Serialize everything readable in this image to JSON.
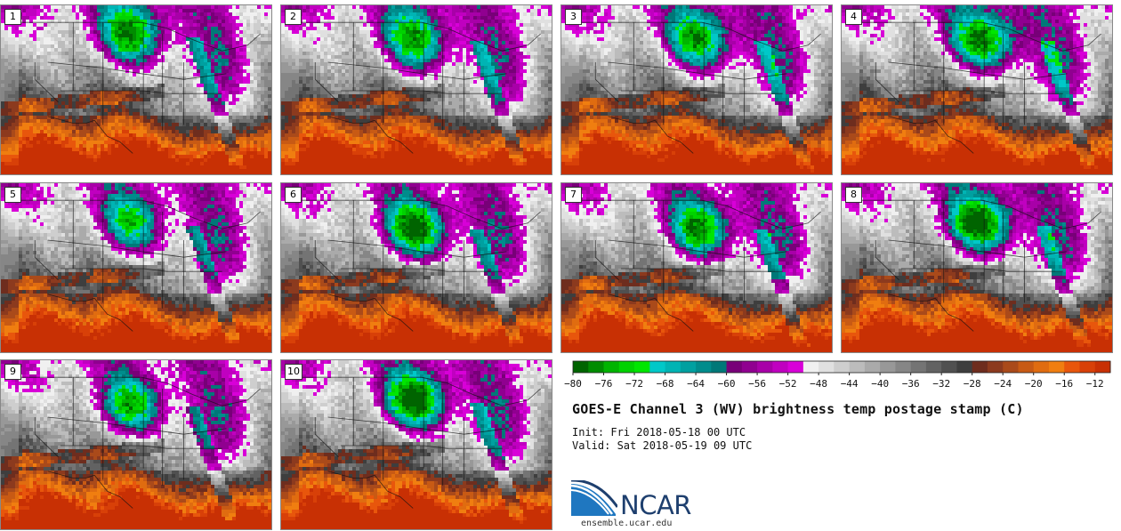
{
  "chart_data": {
    "type": "heatmap",
    "title": "GOES-E Channel 3 (WV) brightness temp postage stamp (C)",
    "init": "Init: Fri 2018-05-18 00 UTC",
    "valid": "Valid: Sat 2018-05-19 09 UTC",
    "panels": [
      {
        "label": "1",
        "low_center": [
          -98,
          47
        ],
        "low_strength": 1.0
      },
      {
        "label": "2",
        "low_center": [
          -97,
          46
        ],
        "low_strength": 1.0
      },
      {
        "label": "3",
        "low_center": [
          -96,
          46
        ],
        "low_strength": 1.0
      },
      {
        "label": "4",
        "low_center": [
          -95,
          46
        ],
        "low_strength": 1.1
      },
      {
        "label": "5",
        "low_center": [
          -98,
          45
        ],
        "low_strength": 0.9
      },
      {
        "label": "6",
        "low_center": [
          -97,
          44
        ],
        "low_strength": 1.2
      },
      {
        "label": "7",
        "low_center": [
          -96,
          44
        ],
        "low_strength": 1.1
      },
      {
        "label": "8",
        "low_center": [
          -96,
          45
        ],
        "low_strength": 1.2
      },
      {
        "label": "9",
        "low_center": [
          -98,
          44
        ],
        "low_strength": 1.0
      },
      {
        "label": "10",
        "low_center": [
          -97,
          45
        ],
        "low_strength": 1.2
      }
    ],
    "colorbar": {
      "min": -80,
      "max": -10,
      "step": 2,
      "tick_labels": [
        "−80",
        "−76",
        "−72",
        "−68",
        "−64",
        "−60",
        "−56",
        "−52",
        "−48",
        "−44",
        "−40",
        "−36",
        "−32",
        "−28",
        "−24",
        "−20",
        "−16",
        "−12"
      ],
      "colors": [
        "#006400",
        "#008c00",
        "#00b400",
        "#00d200",
        "#00e600",
        "#00c8c8",
        "#00b4b4",
        "#00a0a0",
        "#008c8c",
        "#007878",
        "#780078",
        "#900090",
        "#a800a8",
        "#c000c0",
        "#d800d8",
        "#f0f0f0",
        "#e0e0e0",
        "#cecece",
        "#bcbcbc",
        "#aaaaaa",
        "#989898",
        "#868686",
        "#747474",
        "#626262",
        "#505050",
        "#3e3e3e",
        "#6e2d1e",
        "#8c3a1e",
        "#aa4a1a",
        "#c85a14",
        "#e06c10",
        "#f07e10",
        "#e8560c",
        "#d84008",
        "#c83004"
      ]
    }
  },
  "branding": {
    "org": "NCAR",
    "url": "ensemble.ucar.edu"
  }
}
